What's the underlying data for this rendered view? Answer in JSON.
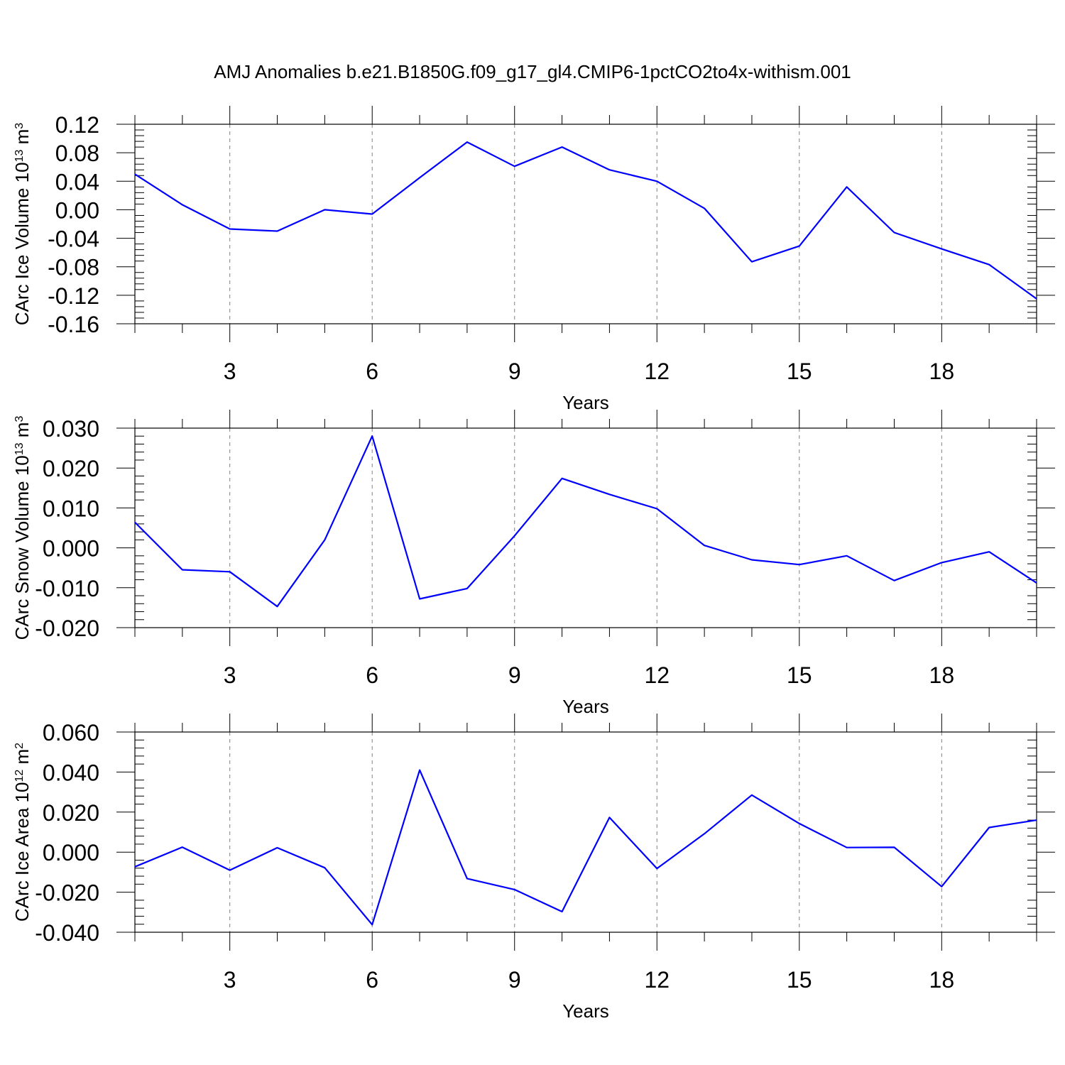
{
  "title": "AMJ Anomalies b.e21.B1850G.f09_g17_gl4.CMIP6-1pctCO2to4x-withism.001",
  "colors": {
    "line": "#0000ff",
    "axis": "#000000",
    "grid": "#808080"
  },
  "chart_data": [
    {
      "type": "line",
      "ylabel": {
        "main": "CArc Ice Volume 10",
        "exp": "13",
        "unit": " m",
        "unit_exp": "3"
      },
      "xlabel": "Years",
      "xlim": [
        1,
        20
      ],
      "ylim": [
        -0.16,
        0.12
      ],
      "xticks": [
        3,
        6,
        9,
        12,
        15,
        18
      ],
      "yticks": [
        -0.16,
        -0.12,
        -0.08,
        -0.04,
        0.0,
        0.04,
        0.08,
        0.12
      ],
      "yticklabels": [
        "-0.16",
        "-0.12",
        "-0.08",
        "-0.04",
        "0.00",
        "0.04",
        "0.08",
        "0.12"
      ],
      "grid": "vertical dashed at x ticks",
      "x": [
        1,
        2,
        3,
        4,
        5,
        6,
        7,
        8,
        9,
        10,
        11,
        12,
        13,
        14,
        15,
        16,
        17,
        18,
        19,
        20
      ],
      "values": [
        0.05,
        0.007,
        -0.027,
        -0.03,
        0.0,
        -0.006,
        0.045,
        0.095,
        0.061,
        0.088,
        0.056,
        0.04,
        0.002,
        -0.073,
        -0.051,
        0.032,
        -0.032,
        -0.055,
        -0.077,
        -0.125
      ]
    },
    {
      "type": "line",
      "ylabel": {
        "main": "CArc Snow Volume 10",
        "exp": "13",
        "unit": " m",
        "unit_exp": "3"
      },
      "xlabel": "Years",
      "xlim": [
        1,
        20
      ],
      "ylim": [
        -0.02,
        0.03
      ],
      "xticks": [
        3,
        6,
        9,
        12,
        15,
        18
      ],
      "yticks": [
        -0.02,
        -0.01,
        0.0,
        0.01,
        0.02,
        0.03
      ],
      "yticklabels": [
        "-0.020",
        "-0.010",
        "0.000",
        "0.010",
        "0.020",
        "0.030"
      ],
      "grid": "vertical dashed at x ticks",
      "x": [
        1,
        2,
        3,
        4,
        5,
        6,
        7,
        8,
        9,
        10,
        11,
        12,
        13,
        14,
        15,
        16,
        17,
        18,
        19,
        20
      ],
      "values": [
        0.0064,
        -0.0055,
        -0.006,
        -0.0147,
        0.002,
        0.028,
        -0.0128,
        -0.0102,
        0.003,
        0.0174,
        0.0134,
        0.0098,
        0.0006,
        -0.003,
        -0.0042,
        -0.002,
        -0.0082,
        -0.0037,
        -0.001,
        -0.0088
      ]
    },
    {
      "type": "line",
      "ylabel": {
        "main": "CArc Ice Area 10",
        "exp": "12",
        "unit": " m",
        "unit_exp": "2"
      },
      "xlabel": "Years",
      "xlim": [
        1,
        20
      ],
      "ylim": [
        -0.04,
        0.06
      ],
      "xticks": [
        3,
        6,
        9,
        12,
        15,
        18
      ],
      "yticks": [
        -0.04,
        -0.02,
        0.0,
        0.02,
        0.04,
        0.06
      ],
      "yticklabels": [
        "-0.040",
        "-0.020",
        "0.000",
        "0.020",
        "0.040",
        "0.060"
      ],
      "grid": "vertical dashed at x ticks",
      "x": [
        1,
        2,
        3,
        4,
        5,
        6,
        7,
        8,
        9,
        10,
        11,
        12,
        13,
        14,
        15,
        16,
        17,
        18,
        19,
        20
      ],
      "values": [
        -0.0073,
        0.0025,
        -0.009,
        0.0022,
        -0.0078,
        -0.0362,
        0.041,
        -0.0132,
        -0.0187,
        -0.0297,
        0.0173,
        -0.0082,
        0.0092,
        0.0285,
        0.0143,
        0.0023,
        0.0024,
        -0.0172,
        0.0123,
        0.016
      ]
    }
  ]
}
